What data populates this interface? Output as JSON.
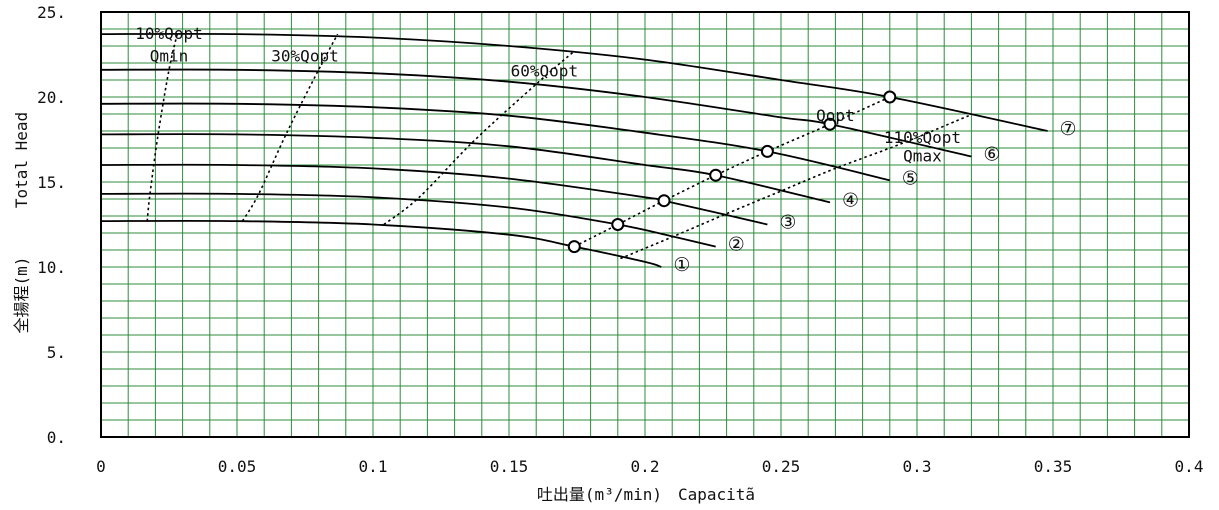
{
  "chart_data": {
    "type": "line",
    "xlabel": "吐出量(m³/min)　Capacitã",
    "ylabel_jp": "全揚程(m)",
    "ylabel_en": "Total Head",
    "xlim": [
      0,
      0.4
    ],
    "ylim": [
      0,
      25
    ],
    "grid": true,
    "grid_minor_step_x": 0.01,
    "grid_minor_step_y": 1,
    "x_ticks": [
      {
        "value": 0,
        "label": "0"
      },
      {
        "value": 0.05,
        "label": "0.05"
      },
      {
        "value": 0.1,
        "label": "0.1"
      },
      {
        "value": 0.15,
        "label": "0.15"
      },
      {
        "value": 0.2,
        "label": "0.2"
      },
      {
        "value": 0.25,
        "label": "0.25"
      },
      {
        "value": 0.3,
        "label": "0.3"
      },
      {
        "value": 0.35,
        "label": "0.35"
      },
      {
        "value": 0.4,
        "label": "0.4"
      }
    ],
    "y_ticks": [
      {
        "value": 0,
        "label": "0."
      },
      {
        "value": 5,
        "label": "5."
      },
      {
        "value": 10,
        "label": "10."
      },
      {
        "value": 15,
        "label": "15."
      },
      {
        "value": 20,
        "label": "20."
      },
      {
        "value": 25,
        "label": "25."
      }
    ],
    "series": [
      {
        "name": "①",
        "x": [
          0,
          0.05,
          0.1,
          0.15,
          0.174,
          0.2,
          0.206
        ],
        "y": [
          12.7,
          12.7,
          12.5,
          11.9,
          11.2,
          10.3,
          10.0
        ],
        "opt_point": [
          0.174,
          11.2
        ]
      },
      {
        "name": "②",
        "x": [
          0,
          0.05,
          0.1,
          0.15,
          0.19,
          0.21,
          0.226
        ],
        "y": [
          14.3,
          14.3,
          14.1,
          13.5,
          12.5,
          11.8,
          11.2
        ],
        "opt_point": [
          0.19,
          12.5
        ]
      },
      {
        "name": "③",
        "x": [
          0,
          0.05,
          0.1,
          0.15,
          0.2,
          0.207,
          0.245
        ],
        "y": [
          16.0,
          16.0,
          15.8,
          15.2,
          14.1,
          13.9,
          12.5
        ],
        "opt_point": [
          0.207,
          13.9
        ]
      },
      {
        "name": "④",
        "x": [
          0,
          0.05,
          0.1,
          0.15,
          0.2,
          0.226,
          0.268
        ],
        "y": [
          17.8,
          17.8,
          17.6,
          17.1,
          16.0,
          15.4,
          13.8
        ],
        "opt_point": [
          0.226,
          15.4
        ]
      },
      {
        "name": "⑤",
        "x": [
          0,
          0.05,
          0.1,
          0.15,
          0.2,
          0.245,
          0.29
        ],
        "y": [
          19.6,
          19.6,
          19.4,
          18.9,
          17.9,
          16.8,
          15.1
        ],
        "opt_point": [
          0.245,
          16.8
        ]
      },
      {
        "name": "⑥",
        "x": [
          0,
          0.05,
          0.1,
          0.15,
          0.2,
          0.25,
          0.268,
          0.32
        ],
        "y": [
          21.6,
          21.6,
          21.4,
          20.9,
          20.0,
          18.8,
          18.4,
          16.5
        ],
        "opt_point": [
          0.268,
          18.4
        ]
      },
      {
        "name": "⑦",
        "x": [
          0,
          0.05,
          0.1,
          0.15,
          0.2,
          0.25,
          0.29,
          0.348
        ],
        "y": [
          23.7,
          23.7,
          23.5,
          23.0,
          22.2,
          21.0,
          20.0,
          18.0
        ],
        "opt_point": [
          0.29,
          20.0
        ]
      }
    ],
    "guide_lines": [
      {
        "label": "10%Qopt\nQmin",
        "x": [
          0.017,
          0.018,
          0.021,
          0.025,
          0.028
        ],
        "y": [
          12.7,
          14.3,
          17.8,
          21.6,
          23.7
        ]
      },
      {
        "label": "30%Qopt",
        "x": [
          0.052,
          0.058,
          0.068,
          0.08,
          0.087
        ],
        "y": [
          12.7,
          14.3,
          17.8,
          21.6,
          23.7
        ]
      },
      {
        "label": "60%Qopt",
        "x": [
          0.104,
          0.117,
          0.137,
          0.161,
          0.174
        ],
        "y": [
          12.5,
          14.1,
          17.4,
          20.9,
          22.7
        ]
      },
      {
        "label": "Qopt",
        "x": [
          0.174,
          0.19,
          0.207,
          0.226,
          0.245,
          0.268,
          0.29
        ],
        "y": [
          11.2,
          12.5,
          13.9,
          15.4,
          16.8,
          18.4,
          20.0
        ]
      },
      {
        "label": "110%Qopt\nQmax",
        "x": [
          0.191,
          0.209,
          0.228,
          0.249,
          0.27,
          0.295,
          0.319
        ],
        "y": [
          10.5,
          11.7,
          13.0,
          14.4,
          15.8,
          17.3,
          18.9
        ]
      }
    ],
    "annotations": [
      {
        "text": "10%Qopt",
        "x": 0.025,
        "y": 23.4
      },
      {
        "text": "Qmin",
        "x": 0.025,
        "y": 22.1
      },
      {
        "text": "30%Qopt",
        "x": 0.075,
        "y": 22.1
      },
      {
        "text": "60%Qopt",
        "x": 0.163,
        "y": 21.2
      },
      {
        "text": "Qopt",
        "x": 0.27,
        "y": 18.6
      },
      {
        "text": "110%Qopt",
        "x": 0.302,
        "y": 17.3
      },
      {
        "text": "Qmax",
        "x": 0.302,
        "y": 16.2
      }
    ]
  }
}
